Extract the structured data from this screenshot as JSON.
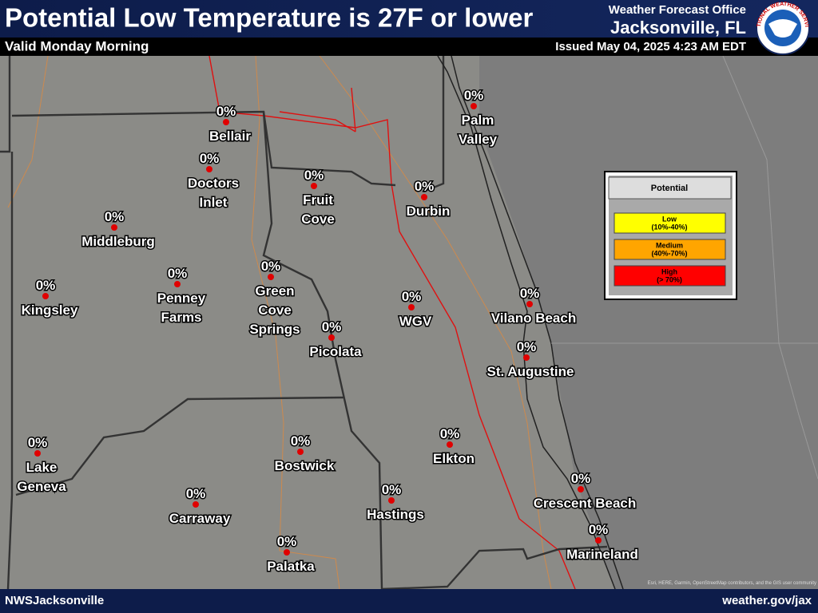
{
  "header": {
    "title": "Potential Low Temperature is 27F or lower",
    "subtitle": "Valid Monday Morning",
    "office": "Weather Forecast Office",
    "location": "Jacksonville, FL",
    "issued": "Issued May 04, 2025 4:23 AM EDT",
    "logo": "NATIONAL WEATHER SERVICE"
  },
  "legend": {
    "title": "Potential",
    "items": [
      {
        "label": "Low",
        "range": "(10%-40%)",
        "color": "#ffff00"
      },
      {
        "label": "Medium",
        "range": "(40%-70%)",
        "color": "#ffa500"
      },
      {
        "label": "High",
        "range": "(> 70%)",
        "color": "#ff0000"
      }
    ]
  },
  "locations": [
    {
      "value": "0%",
      "name": [
        "Bellair"
      ]
    },
    {
      "value": "0%",
      "name": [
        "Doctors",
        "Inlet"
      ]
    },
    {
      "value": "0%",
      "name": [
        "Middleburg"
      ]
    },
    {
      "value": "0%",
      "name": [
        "Kingsley"
      ]
    },
    {
      "value": "0%",
      "name": [
        "Penney",
        "Farms"
      ]
    },
    {
      "value": "0%",
      "name": [
        "Green",
        "Cove",
        "Springs"
      ]
    },
    {
      "value": "0%",
      "name": [
        "Fruit",
        "Cove"
      ]
    },
    {
      "value": "0%",
      "name": [
        "Durbin"
      ]
    },
    {
      "value": "0%",
      "name": [
        "Palm",
        "Valley"
      ]
    },
    {
      "value": "0%",
      "name": [
        "Vilano Beach"
      ]
    },
    {
      "value": "0%",
      "name": [
        "St. Augustine"
      ]
    },
    {
      "value": "0%",
      "name": [
        "WGV"
      ]
    },
    {
      "value": "0%",
      "name": [
        "Picolata"
      ]
    },
    {
      "value": "0%",
      "name": [
        "Lake",
        "Geneva"
      ]
    },
    {
      "value": "0%",
      "name": [
        "Bostwick"
      ]
    },
    {
      "value": "0%",
      "name": [
        "Elkton"
      ]
    },
    {
      "value": "0%",
      "name": [
        "Carraway"
      ]
    },
    {
      "value": "0%",
      "name": [
        "Hastings"
      ]
    },
    {
      "value": "0%",
      "name": [
        "Crescent Beach"
      ]
    },
    {
      "value": "0%",
      "name": [
        "Marineland"
      ]
    },
    {
      "value": "0%",
      "name": [
        "Palatka"
      ]
    }
  ],
  "footer": {
    "left": "NWSJacksonville",
    "right": "weather.gov/jax",
    "attribution": "Esri, HERE, Garmin, OpenStreetMap contributors, and the GIS user community"
  }
}
